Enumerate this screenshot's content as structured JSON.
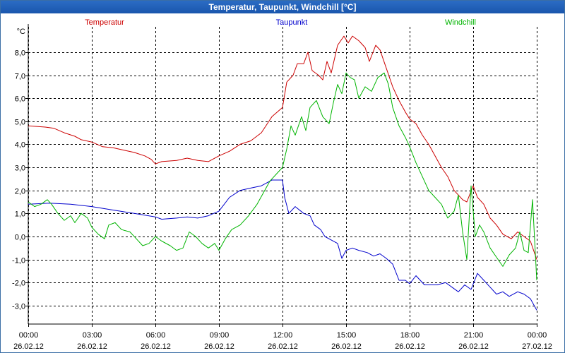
{
  "window": {
    "title": "Temperatur, Taupunkt, Windchill [°C]"
  },
  "chart_data": {
    "type": "line",
    "title": "Temperatur, Taupunkt, Windchill [°C]",
    "ylabel": "°C",
    "xlabel": "",
    "ylim": [
      -3.8,
      9.1
    ],
    "xlim": [
      0,
      24
    ],
    "grid": true,
    "legend_position": "top",
    "y_ticks": [
      {
        "value": 8,
        "label": "8,0"
      },
      {
        "value": 7,
        "label": "7,0"
      },
      {
        "value": 6,
        "label": "6,0"
      },
      {
        "value": 5,
        "label": "5,0"
      },
      {
        "value": 4,
        "label": "4,0"
      },
      {
        "value": 3,
        "label": "3,0"
      },
      {
        "value": 2,
        "label": "2,0"
      },
      {
        "value": 1,
        "label": "1,0"
      },
      {
        "value": 0,
        "label": "0,0"
      },
      {
        "value": -1,
        "label": "-1,0"
      },
      {
        "value": -2,
        "label": "-2,0"
      },
      {
        "value": -3,
        "label": "-3,0"
      }
    ],
    "x_ticks": [
      {
        "value": 0,
        "time": "00:00",
        "date": "26.02.12"
      },
      {
        "value": 3,
        "time": "03:00",
        "date": "26.02.12"
      },
      {
        "value": 6,
        "time": "06:00",
        "date": "26.02.12"
      },
      {
        "value": 9,
        "time": "09:00",
        "date": "26.02.12"
      },
      {
        "value": 12,
        "time": "12:00",
        "date": "26.02.12"
      },
      {
        "value": 15,
        "time": "15:00",
        "date": "26.02.12"
      },
      {
        "value": 18,
        "time": "18:00",
        "date": "26.02.12"
      },
      {
        "value": 21,
        "time": "21:00",
        "date": "26.02.12"
      },
      {
        "value": 24,
        "time": "00:00",
        "date": "27.02.12"
      }
    ],
    "series": [
      {
        "name": "Temperatur",
        "color": "#cc0000",
        "points": [
          [
            0,
            4.8
          ],
          [
            0.8,
            4.75
          ],
          [
            1.2,
            4.7
          ],
          [
            1.7,
            4.5
          ],
          [
            2.2,
            4.35
          ],
          [
            2.5,
            4.2
          ],
          [
            3,
            4.1
          ],
          [
            3.5,
            3.9
          ],
          [
            4,
            3.85
          ],
          [
            4.5,
            3.75
          ],
          [
            5,
            3.65
          ],
          [
            5.5,
            3.5
          ],
          [
            5.8,
            3.35
          ],
          [
            6,
            3.15
          ],
          [
            6.3,
            3.25
          ],
          [
            7,
            3.3
          ],
          [
            7.5,
            3.4
          ],
          [
            8,
            3.3
          ],
          [
            8.5,
            3.25
          ],
          [
            9,
            3.5
          ],
          [
            9.5,
            3.7
          ],
          [
            10,
            4.0
          ],
          [
            10.5,
            4.15
          ],
          [
            11,
            4.5
          ],
          [
            11.5,
            5.2
          ],
          [
            12,
            5.6
          ],
          [
            12.2,
            6.7
          ],
          [
            12.5,
            7.0
          ],
          [
            12.7,
            7.5
          ],
          [
            13,
            7.5
          ],
          [
            13.2,
            8.0
          ],
          [
            13.4,
            7.2
          ],
          [
            13.7,
            7.0
          ],
          [
            13.9,
            6.8
          ],
          [
            14.1,
            7.6
          ],
          [
            14.3,
            7.1
          ],
          [
            14.6,
            8.3
          ],
          [
            14.9,
            8.7
          ],
          [
            15.1,
            8.4
          ],
          [
            15.3,
            8.7
          ],
          [
            15.6,
            8.5
          ],
          [
            15.9,
            8.2
          ],
          [
            16.1,
            7.6
          ],
          [
            16.4,
            8.3
          ],
          [
            16.6,
            8.1
          ],
          [
            16.9,
            7.3
          ],
          [
            17.2,
            6.5
          ],
          [
            17.5,
            5.9
          ],
          [
            17.8,
            5.4
          ],
          [
            18,
            5.1
          ],
          [
            18.3,
            4.9
          ],
          [
            18.6,
            4.4
          ],
          [
            18.9,
            4.0
          ],
          [
            19.2,
            3.5
          ],
          [
            19.5,
            3.0
          ],
          [
            19.8,
            2.6
          ],
          [
            20.1,
            2.0
          ],
          [
            20.5,
            1.6
          ],
          [
            20.7,
            1.5
          ],
          [
            21,
            2.2
          ],
          [
            21.2,
            1.7
          ],
          [
            21.5,
            1.4
          ],
          [
            21.8,
            0.8
          ],
          [
            22.1,
            0.5
          ],
          [
            22.4,
            0.1
          ],
          [
            22.8,
            -0.1
          ],
          [
            23.1,
            0.2
          ],
          [
            23.4,
            0.0
          ],
          [
            23.7,
            -0.2
          ],
          [
            24,
            -1.0
          ]
        ]
      },
      {
        "name": "Taupunkt",
        "color": "#0000cc",
        "points": [
          [
            0,
            1.4
          ],
          [
            1,
            1.45
          ],
          [
            2,
            1.4
          ],
          [
            3,
            1.3
          ],
          [
            4,
            1.15
          ],
          [
            5,
            1.0
          ],
          [
            6,
            0.85
          ],
          [
            6.3,
            0.75
          ],
          [
            7,
            0.8
          ],
          [
            7.5,
            0.85
          ],
          [
            8,
            0.8
          ],
          [
            8.5,
            0.9
          ],
          [
            9,
            1.1
          ],
          [
            9.5,
            1.7
          ],
          [
            10,
            2.0
          ],
          [
            10.5,
            2.1
          ],
          [
            11,
            2.2
          ],
          [
            11.5,
            2.45
          ],
          [
            12,
            2.45
          ],
          [
            12.1,
            1.7
          ],
          [
            12.3,
            1.0
          ],
          [
            12.6,
            1.3
          ],
          [
            13,
            1.0
          ],
          [
            13.3,
            0.9
          ],
          [
            13.5,
            0.5
          ],
          [
            13.8,
            0.3
          ],
          [
            14,
            0.0
          ],
          [
            14.3,
            -0.15
          ],
          [
            14.6,
            -0.3
          ],
          [
            14.8,
            -0.95
          ],
          [
            15,
            -0.6
          ],
          [
            15.3,
            -0.5
          ],
          [
            15.6,
            -0.6
          ],
          [
            16,
            -0.7
          ],
          [
            16.3,
            -0.85
          ],
          [
            16.6,
            -0.75
          ],
          [
            16.9,
            -0.95
          ],
          [
            17.2,
            -1.2
          ],
          [
            17.5,
            -1.9
          ],
          [
            17.8,
            -1.9
          ],
          [
            18,
            -2.05
          ],
          [
            18.3,
            -1.7
          ],
          [
            18.7,
            -2.1
          ],
          [
            19.3,
            -2.1
          ],
          [
            19.7,
            -2.0
          ],
          [
            20,
            -2.2
          ],
          [
            20.3,
            -2.4
          ],
          [
            20.6,
            -2.1
          ],
          [
            20.9,
            -2.3
          ],
          [
            21.2,
            -1.6
          ],
          [
            21.5,
            -1.9
          ],
          [
            21.8,
            -2.2
          ],
          [
            22.1,
            -2.5
          ],
          [
            22.4,
            -2.4
          ],
          [
            22.7,
            -2.6
          ],
          [
            23.1,
            -2.4
          ],
          [
            23.4,
            -2.5
          ],
          [
            23.7,
            -2.7
          ],
          [
            24,
            -3.2
          ]
        ]
      },
      {
        "name": "Windchill",
        "color": "#00b400",
        "points": [
          [
            0,
            1.5
          ],
          [
            0.3,
            1.3
          ],
          [
            0.6,
            1.4
          ],
          [
            0.9,
            1.6
          ],
          [
            1.1,
            1.4
          ],
          [
            1.4,
            1.0
          ],
          [
            1.7,
            0.7
          ],
          [
            2.0,
            0.9
          ],
          [
            2.2,
            0.6
          ],
          [
            2.5,
            1.0
          ],
          [
            2.8,
            0.8
          ],
          [
            3.0,
            0.4
          ],
          [
            3.3,
            0.1
          ],
          [
            3.6,
            -0.1
          ],
          [
            3.8,
            0.5
          ],
          [
            4.1,
            0.6
          ],
          [
            4.4,
            0.3
          ],
          [
            4.8,
            0.2
          ],
          [
            5.1,
            -0.1
          ],
          [
            5.4,
            -0.4
          ],
          [
            5.7,
            -0.3
          ],
          [
            6.0,
            0.0
          ],
          [
            6.3,
            -0.2
          ],
          [
            6.7,
            -0.4
          ],
          [
            7.0,
            -0.6
          ],
          [
            7.3,
            -0.5
          ],
          [
            7.6,
            0.2
          ],
          [
            7.9,
            0.0
          ],
          [
            8.2,
            -0.3
          ],
          [
            8.5,
            -0.5
          ],
          [
            8.8,
            -0.3
          ],
          [
            9.0,
            -0.6
          ],
          [
            9.3,
            -0.1
          ],
          [
            9.6,
            0.3
          ],
          [
            10,
            0.5
          ],
          [
            10.4,
            0.9
          ],
          [
            10.8,
            1.4
          ],
          [
            11.1,
            1.9
          ],
          [
            11.4,
            2.4
          ],
          [
            11.7,
            2.7
          ],
          [
            12,
            3.0
          ],
          [
            12.2,
            3.8
          ],
          [
            12.4,
            4.8
          ],
          [
            12.6,
            4.4
          ],
          [
            12.9,
            5.2
          ],
          [
            13.1,
            4.6
          ],
          [
            13.3,
            5.6
          ],
          [
            13.6,
            5.9
          ],
          [
            13.9,
            5.2
          ],
          [
            14.2,
            4.9
          ],
          [
            14.4,
            5.8
          ],
          [
            14.6,
            6.6
          ],
          [
            14.8,
            6.2
          ],
          [
            15.0,
            7.1
          ],
          [
            15.2,
            6.9
          ],
          [
            15.4,
            6.8
          ],
          [
            15.6,
            6.0
          ],
          [
            15.9,
            6.5
          ],
          [
            16.2,
            6.3
          ],
          [
            16.5,
            6.9
          ],
          [
            16.8,
            7.1
          ],
          [
            17.0,
            6.6
          ],
          [
            17.2,
            5.6
          ],
          [
            17.5,
            4.8
          ],
          [
            17.8,
            4.3
          ],
          [
            18.0,
            3.9
          ],
          [
            18.3,
            3.2
          ],
          [
            18.6,
            2.6
          ],
          [
            18.9,
            2.0
          ],
          [
            19.2,
            1.7
          ],
          [
            19.5,
            1.4
          ],
          [
            19.8,
            0.8
          ],
          [
            20.1,
            1.1
          ],
          [
            20.3,
            1.8
          ],
          [
            20.5,
            0.2
          ],
          [
            20.7,
            -1.0
          ],
          [
            20.9,
            2.2
          ],
          [
            21.1,
            0.0
          ],
          [
            21.3,
            0.5
          ],
          [
            21.5,
            0.2
          ],
          [
            21.8,
            -0.5
          ],
          [
            22.1,
            -0.9
          ],
          [
            22.4,
            -1.3
          ],
          [
            22.7,
            -0.8
          ],
          [
            23.0,
            -0.5
          ],
          [
            23.2,
            0.2
          ],
          [
            23.4,
            -0.6
          ],
          [
            23.6,
            -0.7
          ],
          [
            23.8,
            1.6
          ],
          [
            24,
            -1.9
          ]
        ]
      }
    ]
  }
}
